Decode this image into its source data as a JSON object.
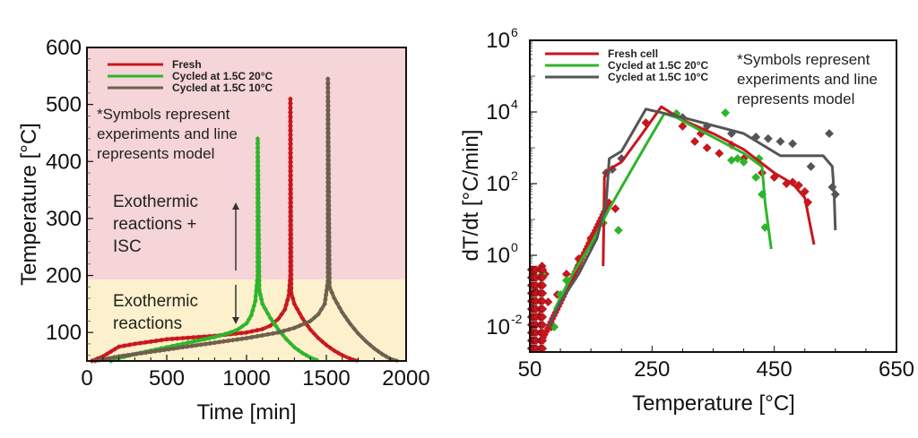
{
  "chart_data": [
    {
      "type": "line",
      "xlabel": "Time [min]",
      "ylabel": "Temperature [°C]",
      "xlim": [
        0,
        2000
      ],
      "ylim": [
        50,
        600
      ],
      "xticks": [
        "0",
        "500",
        "1000",
        "1500",
        "2000"
      ],
      "yticks": [
        "100",
        "200",
        "300",
        "400",
        "500",
        "600"
      ],
      "xtick_values": [
        0,
        500,
        1000,
        1500,
        2000
      ],
      "ytick_values": [
        100,
        200,
        300,
        400,
        500,
        600
      ],
      "legend_position": "top-left",
      "note": [
        "*Symbols represent",
        "experiments and line",
        "represents model"
      ],
      "regions": [
        {
          "name": "upper",
          "from": 193,
          "to": 600,
          "color": "#f5d5d7",
          "label": [
            "Exothermic",
            "reactions +",
            "ISC"
          ]
        },
        {
          "name": "lower",
          "from": 50,
          "to": 193,
          "color": "#fcf1cc",
          "label": [
            "Exothermic",
            "reactions"
          ]
        }
      ],
      "series": [
        {
          "name": "Fresh",
          "color": "#c8161d",
          "x": [
            30,
            100,
            200,
            300,
            400,
            500,
            600,
            700,
            800,
            900,
            1000,
            1100,
            1150,
            1200,
            1240,
            1265,
            1275,
            1275,
            1280,
            1300,
            1350,
            1400,
            1450,
            1500,
            1550,
            1600,
            1650,
            1700
          ],
          "y": [
            50,
            58,
            75,
            80,
            84,
            88,
            90,
            92,
            94,
            97,
            100,
            106,
            112,
            124,
            140,
            165,
            200,
            510,
            170,
            150,
            125,
            105,
            90,
            78,
            68,
            60,
            54,
            50
          ]
        },
        {
          "name": "Cycled at 1.5C 20°C",
          "color": "#2db52a",
          "x": [
            150,
            200,
            300,
            400,
            500,
            600,
            700,
            800,
            900,
            950,
            1000,
            1030,
            1055,
            1070,
            1070,
            1080,
            1100,
            1150,
            1200,
            1250,
            1300,
            1350,
            1400,
            1450
          ],
          "y": [
            50,
            55,
            62,
            68,
            74,
            80,
            86,
            92,
            100,
            106,
            116,
            130,
            155,
            200,
            440,
            175,
            150,
            125,
            105,
            88,
            74,
            64,
            56,
            51
          ]
        },
        {
          "name": "Cycled at 1.5C 10°C",
          "color": "#6e5e4e",
          "x": [
            50,
            200,
            400,
            600,
            800,
            1000,
            1100,
            1200,
            1300,
            1400,
            1450,
            1490,
            1510,
            1510,
            1520,
            1550,
            1600,
            1650,
            1700,
            1750,
            1800,
            1850,
            1900,
            1950
          ],
          "y": [
            50,
            58,
            66,
            74,
            82,
            90,
            95,
            100,
            108,
            120,
            132,
            150,
            190,
            545,
            180,
            160,
            135,
            115,
            98,
            84,
            72,
            62,
            54,
            50
          ]
        }
      ]
    },
    {
      "type": "scatter",
      "xlabel": "Temperature [°C]",
      "ylabel": "dT/dt [°C/min]",
      "xscale": "linear",
      "yscale": "log",
      "xlim": [
        50,
        650
      ],
      "ylim": [
        0.002,
        1000000
      ],
      "xticks": [
        "50",
        "250",
        "450",
        "650"
      ],
      "xtick_values": [
        50,
        250,
        450,
        650
      ],
      "ytick_exponents": [
        -2,
        0,
        2,
        4,
        6
      ],
      "legend_position": "top-left",
      "note": [
        "*Symbols represent",
        "experiments and line",
        "represents model"
      ],
      "series": [
        {
          "name": "Fresh cell",
          "color": "#c8161d",
          "model_x": [
            170,
            172,
            175,
            180,
            200,
            230,
            265,
            300,
            350,
            400,
            450,
            480,
            500,
            515
          ],
          "model_y": [
            0.5,
            150,
            200,
            250,
            400,
            2000,
            14000,
            6000,
            2500,
            900,
            200,
            100,
            40,
            2
          ],
          "exp_x": [
            55,
            60,
            65,
            70,
            75,
            80,
            85,
            95,
            110,
            130,
            150,
            170,
            190,
            240,
            300,
            320,
            330,
            340,
            360,
            380,
            400,
            430,
            450,
            470,
            480,
            490,
            500,
            505
          ],
          "exp_y": [
            0.3,
            0.1,
            0.02,
            0.5,
            0.3,
            0.05,
            0.01,
            0.08,
            0.3,
            0.8,
            3,
            8,
            20,
            5000,
            4000,
            1500,
            2500,
            1000,
            700,
            1200,
            500,
            200,
            150,
            100,
            110,
            90,
            60,
            30
          ]
        },
        {
          "name": "Cycled at 1.5C 20°C",
          "color": "#2db52a",
          "model_x": [
            90,
            120,
            150,
            180,
            200,
            240,
            270,
            290,
            330,
            400,
            430,
            435,
            445
          ],
          "model_y": [
            0.03,
            0.3,
            2,
            20,
            80,
            1200,
            9000,
            7000,
            3000,
            700,
            300,
            30,
            1.5
          ],
          "exp_x": [
            55,
            70,
            90,
            100,
            110,
            130,
            150,
            170,
            195,
            290,
            370,
            380,
            390,
            400,
            420,
            425,
            430,
            435
          ],
          "exp_y": [
            0.05,
            0.3,
            0.01,
            0.08,
            0.2,
            0.5,
            2,
            8,
            5,
            9000,
            9500,
            450,
            500,
            400,
            150,
            500,
            50,
            6
          ]
        },
        {
          "name": "Cycled at 1.5C 10°C",
          "color": "#555555",
          "model_x": [
            80,
            100,
            130,
            160,
            175,
            180,
            200,
            240,
            300,
            400,
            460,
            530,
            545,
            548,
            550
          ],
          "model_y": [
            0.01,
            0.05,
            0.3,
            3,
            30,
            500,
            800,
            12000,
            7000,
            2500,
            600,
            600,
            300,
            50,
            5
          ],
          "exp_x": [
            175,
            185,
            200,
            300,
            340,
            380,
            420,
            440,
            460,
            480,
            510,
            540,
            545,
            550
          ],
          "exp_y": [
            200,
            250,
            500,
            7000,
            4000,
            2500,
            2000,
            1800,
            1500,
            1300,
            300,
            2500,
            80,
            50
          ]
        }
      ]
    }
  ]
}
